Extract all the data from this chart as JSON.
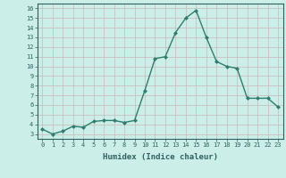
{
  "x": [
    0,
    1,
    2,
    3,
    4,
    5,
    6,
    7,
    8,
    9,
    10,
    11,
    12,
    13,
    14,
    15,
    16,
    17,
    18,
    19,
    20,
    21,
    22,
    23
  ],
  "y": [
    3.5,
    3.0,
    3.3,
    3.8,
    3.7,
    4.3,
    4.4,
    4.4,
    4.2,
    4.4,
    7.5,
    10.8,
    11.0,
    13.5,
    15.0,
    15.8,
    13.0,
    10.5,
    10.0,
    9.8,
    6.7,
    6.7,
    6.7,
    5.8
  ],
  "line_color": "#2e7d6e",
  "marker": "D",
  "marker_size": 2.0,
  "background_color": "#cceee8",
  "grid_color": "#c8b8b8",
  "xlabel": "Humidex (Indice chaleur)",
  "ylabel": "",
  "title": "",
  "xlim": [
    -0.5,
    23.5
  ],
  "ylim": [
    2.5,
    16.5
  ],
  "yticks": [
    3,
    4,
    5,
    6,
    7,
    8,
    9,
    10,
    11,
    12,
    13,
    14,
    15,
    16
  ],
  "xticks": [
    0,
    1,
    2,
    3,
    4,
    5,
    6,
    7,
    8,
    9,
    10,
    11,
    12,
    13,
    14,
    15,
    16,
    17,
    18,
    19,
    20,
    21,
    22,
    23
  ],
  "tick_color": "#2e6060",
  "font_color": "#2e6060",
  "spine_color": "#2e6060",
  "xlabel_fontsize": 6.5,
  "tick_fontsize": 5.0,
  "linewidth": 1.0
}
